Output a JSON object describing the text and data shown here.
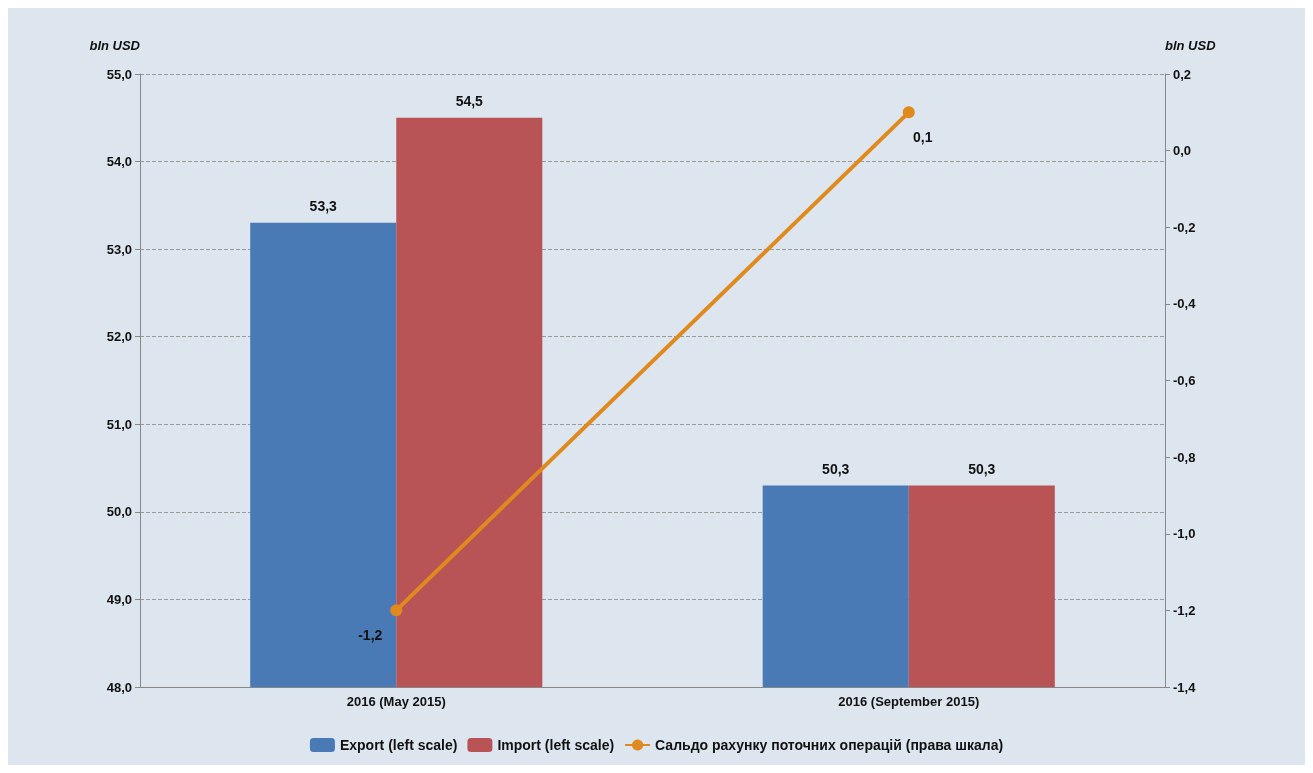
{
  "chart_data": {
    "type": "bar",
    "ylabel": "bln USD",
    "y2label": "bln USD",
    "categories": [
      "2016 (May 2015)",
      "2016 (September 2015)"
    ],
    "series": [
      {
        "name": "Export (left scale)",
        "color": "#4a7ab5",
        "values": [
          53.3,
          50.3
        ],
        "value_labels": [
          "53,3",
          "50,3"
        ]
      },
      {
        "name": "Import (left scale)",
        "color": "#b95456",
        "values": [
          54.5,
          50.3
        ],
        "value_labels": [
          "54,5",
          "50,3"
        ]
      },
      {
        "name": "Сальдо рахунку поточних операцій (права шкала)",
        "type": "line",
        "axis": "y2",
        "color": "#e08a1e",
        "values": [
          -1.2,
          0.1
        ],
        "value_labels": [
          "-1,2",
          "0,1"
        ],
        "marker": "circle"
      }
    ],
    "ylim": [
      48,
      55
    ],
    "yticks": [
      {
        "value": 48,
        "label": "48,0"
      },
      {
        "value": 49,
        "label": "49,0"
      },
      {
        "value": 50,
        "label": "50,0"
      },
      {
        "value": 51,
        "label": "51,0"
      },
      {
        "value": 52,
        "label": "52,0"
      },
      {
        "value": 53,
        "label": "53,0"
      },
      {
        "value": 54,
        "label": "54,0"
      },
      {
        "value": 55,
        "label": "55,0"
      }
    ],
    "y2lim": [
      -1.4,
      0.2
    ],
    "y2ticks": [
      {
        "value": -1.4,
        "label": "-1,4"
      },
      {
        "value": -1.2,
        "label": "-1,2"
      },
      {
        "value": -1,
        "label": "-1,0"
      },
      {
        "value": -0.8,
        "label": "-0,8"
      },
      {
        "value": -0.6,
        "label": "-0,6"
      },
      {
        "value": -0.4,
        "label": "-0,4"
      },
      {
        "value": -0.2,
        "label": "-0,2"
      },
      {
        "value": 0,
        "label": "0,0"
      },
      {
        "value": 0.2,
        "label": "0,2"
      }
    ],
    "grid": "y",
    "legend": "bottom"
  }
}
